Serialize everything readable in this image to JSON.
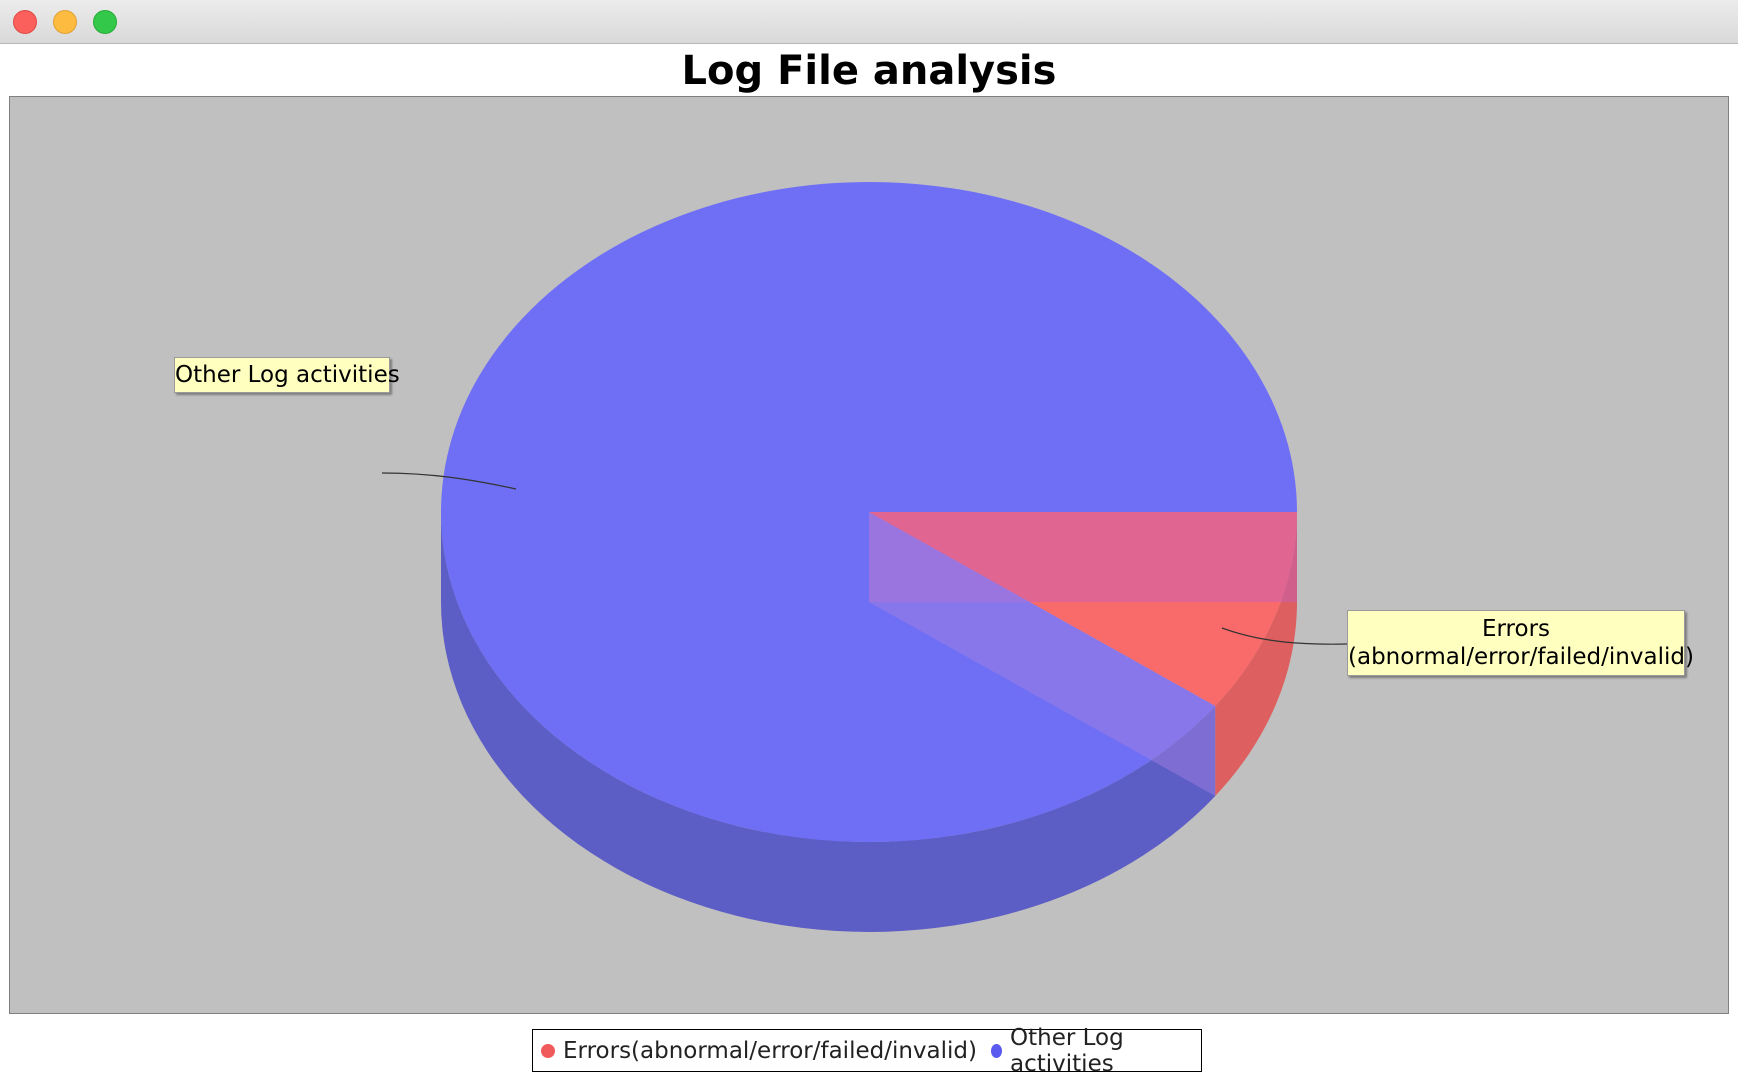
{
  "window": {
    "controls": {
      "close": "close-button",
      "minimize": "minimize-button",
      "maximize": "maximize-button"
    }
  },
  "chart_data": {
    "type": "pie",
    "title": "Log File analysis",
    "style": "3d",
    "slices": [
      {
        "label": "Errors(abnormal/error/failed/invalid)",
        "callout_lines": [
          "Errors",
          "(abnormal/error/failed/invalid)"
        ],
        "value": 10,
        "color": "#ff6060"
      },
      {
        "label": "Other Log activities",
        "callout_lines": [
          "Other Log activities"
        ],
        "value": 90,
        "color": "#6060ff"
      }
    ],
    "legend_position": "bottom",
    "plot_background": "#c0c0c0",
    "label_background": "#ffffc0"
  }
}
